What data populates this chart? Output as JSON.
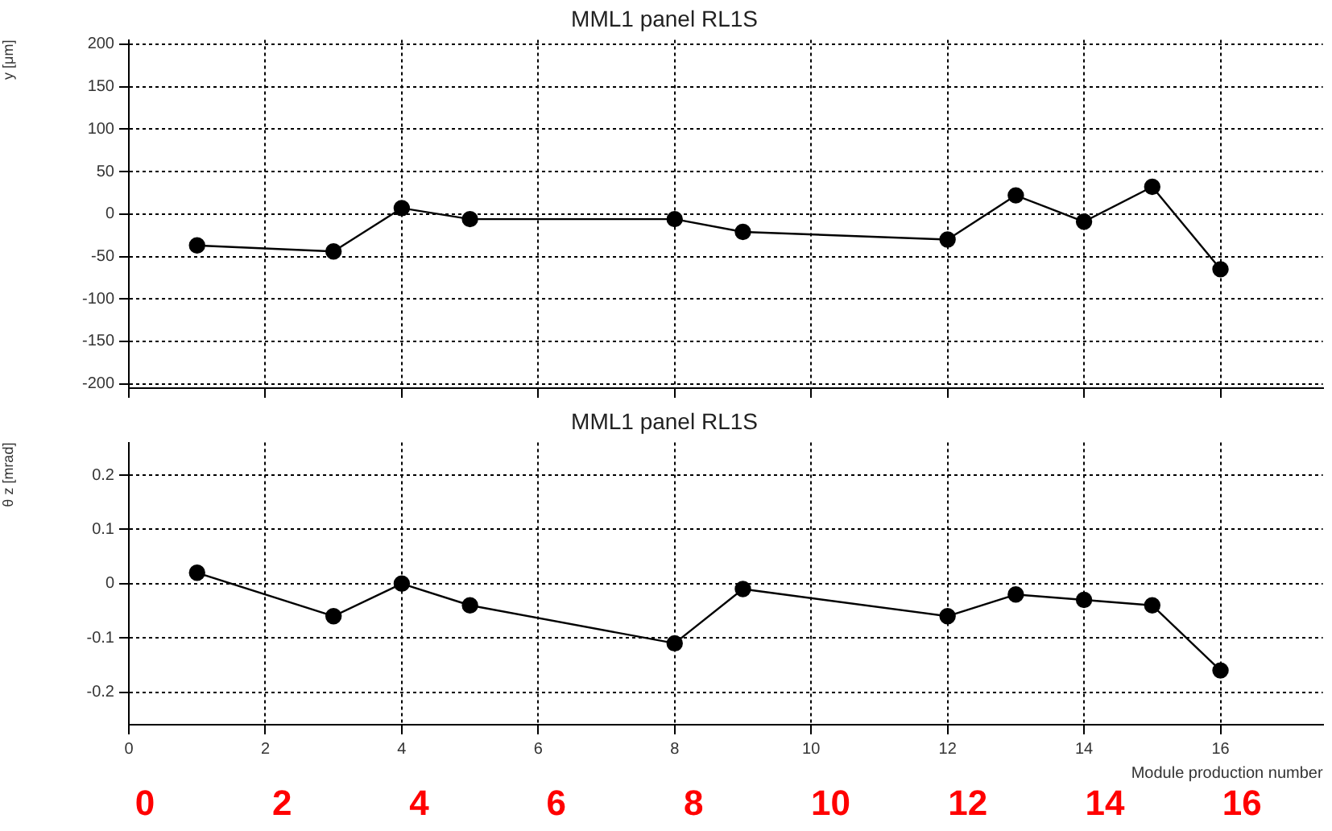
{
  "chart_data": [
    {
      "type": "line",
      "title": "MML1 panel RL1S",
      "ylabel": "y [μm]",
      "x": [
        1,
        3,
        4,
        5,
        8,
        9,
        12,
        13,
        14,
        15,
        16
      ],
      "series": [
        {
          "color": "#000000",
          "values": [
            -37,
            -44,
            7,
            -6,
            -6,
            -21,
            -30,
            22,
            -9,
            32,
            -65
          ]
        }
      ],
      "xlim": [
        0,
        17.5
      ],
      "xticks": [
        0,
        2,
        4,
        6,
        8,
        10,
        12,
        14,
        16
      ],
      "ylim": [
        -205,
        205
      ],
      "yticks": [
        -200,
        -150,
        -100,
        -50,
        0,
        50,
        100,
        150,
        200
      ],
      "tick_labels": "y",
      "grid": true,
      "marker": "circle",
      "line_style": "solid"
    },
    {
      "type": "line",
      "title": "MML1 panel RL1S",
      "ylabel": "θ z [mrad]",
      "xlabel": "Module production number",
      "x": [
        1,
        3,
        4,
        5,
        8,
        9,
        12,
        13,
        14,
        15,
        16
      ],
      "series": [
        {
          "color": "#000000",
          "values": [
            0.02,
            -0.06,
            0.0,
            -0.04,
            -0.11,
            -0.01,
            -0.06,
            -0.02,
            -0.03,
            -0.04,
            -0.16
          ]
        }
      ],
      "xlim": [
        0,
        17.5
      ],
      "xticks": [
        0,
        2,
        4,
        6,
        8,
        10,
        12,
        14,
        16
      ],
      "ylim": [
        -0.26,
        0.26
      ],
      "yticks": [
        -0.2,
        -0.1,
        0,
        0.1,
        0.2
      ],
      "grid": true,
      "marker": "circle",
      "line_style": "solid",
      "annotations": [
        "0",
        "2",
        "4",
        "6",
        "8",
        "10",
        "12",
        "14",
        "16"
      ]
    }
  ]
}
